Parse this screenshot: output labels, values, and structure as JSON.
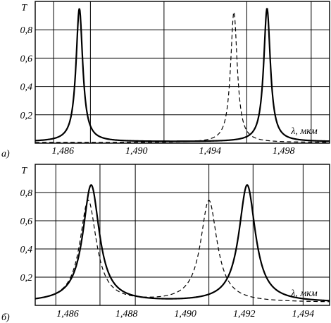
{
  "chart_data": [
    {
      "type": "line",
      "panel_label": "а)",
      "ylabel": "T",
      "xlabel": "λ, мкм",
      "xlim": [
        1.4845,
        1.5005
      ],
      "ylim": [
        0,
        1.0
      ],
      "x_ticks": [
        {
          "v": 1.486,
          "label": "1,486"
        },
        {
          "v": 1.49,
          "label": "1,490"
        },
        {
          "v": 1.494,
          "label": "1,494"
        },
        {
          "v": 1.498,
          "label": "1,498"
        }
      ],
      "x_grid": [
        1.4855,
        1.4875,
        1.4915,
        1.496,
        1.4995
      ],
      "y_ticks": [
        {
          "v": 0.2,
          "label": "0,2"
        },
        {
          "v": 0.4,
          "label": "0,4"
        },
        {
          "v": 0.6,
          "label": "0,6"
        },
        {
          "v": 0.8,
          "label": "0,8"
        }
      ],
      "series": [
        {
          "style": "solid",
          "peaks": [
            {
              "x0": 1.4869,
              "peak": 0.94,
              "gamma": 0.00022,
              "base": 0.005
            },
            {
              "x0": 1.4971,
              "peak": 0.94,
              "gamma": 0.00022,
              "base": 0.005
            }
          ]
        },
        {
          "style": "dashed",
          "peaks": [
            {
              "x0": 1.4953,
              "peak": 0.92,
              "gamma": 0.00022,
              "base": 0.005
            }
          ]
        }
      ]
    },
    {
      "type": "line",
      "panel_label": "б)",
      "ylabel": "T",
      "xlabel": "λ, мкм",
      "xlim": [
        1.4849,
        1.4949
      ],
      "ylim": [
        0,
        1.0
      ],
      "x_ticks": [
        {
          "v": 1.486,
          "label": "1,486"
        },
        {
          "v": 1.488,
          "label": "1,488"
        },
        {
          "v": 1.49,
          "label": "1,490"
        },
        {
          "v": 1.492,
          "label": "1,492"
        },
        {
          "v": 1.494,
          "label": "1,494"
        }
      ],
      "x_grid": [
        1.4856,
        1.4871,
        1.4883,
        1.4908,
        1.4923,
        1.494
      ],
      "y_ticks": [
        {
          "v": 0.2,
          "label": "0,2"
        },
        {
          "v": 0.4,
          "label": "0,4"
        },
        {
          "v": 0.6,
          "label": "0,6"
        },
        {
          "v": 0.8,
          "label": "0,8"
        }
      ],
      "series": [
        {
          "style": "solid",
          "peaks": [
            {
              "x0": 1.4868,
              "peak": 0.83,
              "gamma": 0.00034,
              "base": 0.01
            },
            {
              "x0": 1.4921,
              "peak": 0.83,
              "gamma": 0.00034,
              "base": 0.01
            }
          ]
        },
        {
          "style": "dashed",
          "peaks": [
            {
              "x0": 1.4867,
              "peak": 0.72,
              "gamma": 0.00034,
              "base": 0.01
            },
            {
              "x0": 1.4908,
              "peak": 0.72,
              "gamma": 0.00034,
              "base": 0.01
            }
          ]
        }
      ]
    }
  ]
}
